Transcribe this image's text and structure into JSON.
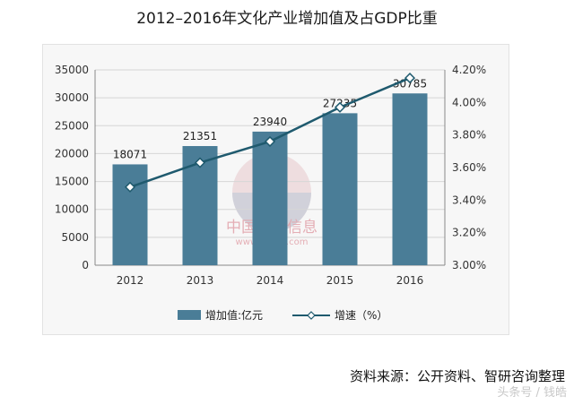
{
  "title": "2012–2016年文化产业增加值及占GDP比重",
  "source": "资料来源：公开资料、智研咨询整理",
  "watermark_text": "头条号 / 钱皓",
  "logo": {
    "cn": "中国产业信息",
    "url": "www.chyxx.com"
  },
  "chart_data": {
    "type": "bar",
    "categories": [
      "2012",
      "2013",
      "2014",
      "2015",
      "2016"
    ],
    "series": [
      {
        "name": "增加值:亿元",
        "type": "bar",
        "axis": "left",
        "values": [
          18071,
          21351,
          23940,
          27235,
          30785
        ],
        "data_labels": [
          "18071",
          "21351",
          "23940",
          "27235",
          "30785"
        ],
        "color": "#4a7d97"
      },
      {
        "name": "增速（%）",
        "type": "line",
        "axis": "right",
        "values": [
          3.48,
          3.63,
          3.76,
          3.97,
          4.15
        ],
        "color": "#1f5a6e"
      }
    ],
    "y_left": {
      "ylim": [
        0,
        35000
      ],
      "ticks": [
        0,
        5000,
        10000,
        15000,
        20000,
        25000,
        30000,
        35000
      ],
      "tick_labels": [
        "0",
        "5000",
        "10000",
        "15000",
        "20000",
        "25000",
        "30000",
        "35000"
      ]
    },
    "y_right": {
      "ylim": [
        3.0,
        4.2
      ],
      "ticks": [
        3.0,
        3.2,
        3.4,
        3.6,
        3.8,
        4.0,
        4.2
      ],
      "tick_labels": [
        "3.00%",
        "3.20%",
        "3.40%",
        "3.60%",
        "3.80%",
        "4.00%",
        "4.20%"
      ]
    },
    "grid": true,
    "legend_position": "bottom"
  }
}
